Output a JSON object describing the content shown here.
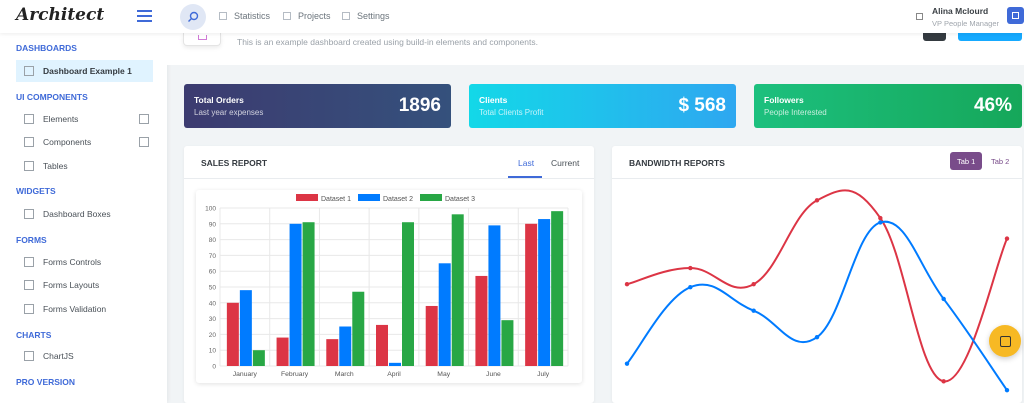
{
  "app": {
    "logo": "Architect"
  },
  "header": {
    "nav": [
      {
        "label": "Statistics"
      },
      {
        "label": "Projects"
      },
      {
        "label": "Settings"
      }
    ],
    "user": {
      "name": "Alina Mclourd",
      "role": "VP People Manager"
    }
  },
  "sidebar": {
    "sections": [
      {
        "title": "Dashboards",
        "items": [
          "Dashboard Example 1"
        ]
      },
      {
        "title": "UI Components",
        "items": [
          "Elements",
          "Components",
          "Tables"
        ]
      },
      {
        "title": "Widgets",
        "items": [
          "Dashboard Boxes"
        ]
      },
      {
        "title": "Forms",
        "items": [
          "Forms Controls",
          "Forms Layouts",
          "Forms Validation"
        ]
      },
      {
        "title": "Charts",
        "items": [
          "ChartJS"
        ]
      },
      {
        "title": "Pro Version",
        "items": []
      }
    ]
  },
  "page": {
    "subtitle": "This is an example dashboard created using build-in elements and components."
  },
  "stats": [
    {
      "label": "Total Orders",
      "sub": "Last year expenses",
      "value": "1896"
    },
    {
      "label": "Clients",
      "sub": "Total Clients Profit",
      "value": "$ 568"
    },
    {
      "label": "Followers",
      "sub": "People Interested",
      "value": "46%"
    }
  ],
  "sales_card": {
    "title": "Sales Report",
    "tabs": [
      "Last",
      "Current"
    ]
  },
  "bandwidth_card": {
    "title": "Bandwidth Reports",
    "tabs": [
      "Tab 1",
      "Tab 2"
    ]
  },
  "colors": {
    "red": "#dc3545",
    "blue": "#007bff",
    "green": "#28a745",
    "accent": "#3f6ad8"
  },
  "chart_data": [
    {
      "type": "bar",
      "categories": [
        "January",
        "February",
        "March",
        "April",
        "May",
        "June",
        "July"
      ],
      "series": [
        {
          "name": "Dataset 1",
          "color": "#dc3545",
          "values": [
            40,
            18,
            17,
            26,
            38,
            57,
            90
          ]
        },
        {
          "name": "Dataset 2",
          "color": "#007bff",
          "values": [
            48,
            90,
            25,
            2,
            65,
            89,
            93
          ]
        },
        {
          "name": "Dataset 3",
          "color": "#28a745",
          "values": [
            10,
            91,
            47,
            91,
            96,
            29,
            98
          ]
        }
      ],
      "ylim": [
        0,
        100
      ],
      "yticks": [
        0,
        10,
        20,
        30,
        40,
        50,
        60,
        70,
        80,
        90,
        100
      ],
      "legend": "top",
      "grid": true
    },
    {
      "type": "line",
      "x": [
        1,
        2,
        3,
        4,
        5,
        6,
        7
      ],
      "series": [
        {
          "color": "#dc3545",
          "values": [
            58,
            69,
            58,
            115,
            103,
            -8,
            89
          ]
        },
        {
          "color": "#007bff",
          "values": [
            4,
            56,
            40,
            22,
            100,
            48,
            -14
          ]
        }
      ],
      "ylim": [
        -20,
        120
      ],
      "legend": "none",
      "grid": false
    }
  ]
}
